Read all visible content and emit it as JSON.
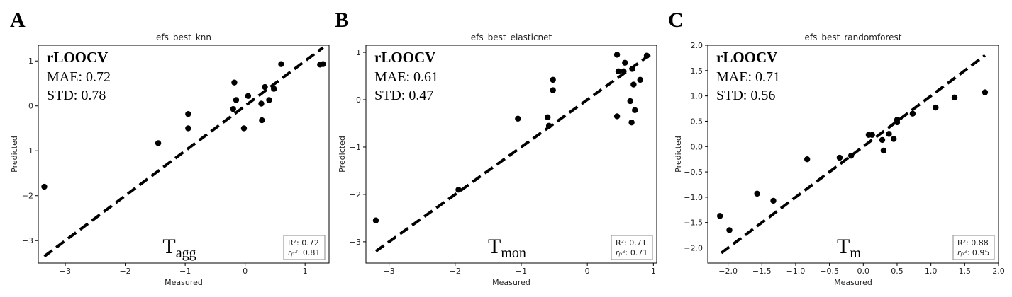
{
  "chart_data": [
    {
      "type": "scatter",
      "panel_label": "A",
      "title": "efs_best_knn",
      "xlabel": "Measured",
      "ylabel": "Predicted",
      "xlim": [
        -3.45,
        1.4
      ],
      "ylim": [
        -3.5,
        1.35
      ],
      "xticks": [
        -3,
        -2,
        -1,
        0,
        1
      ],
      "yticks": [
        -3,
        -2,
        -1,
        0,
        1
      ],
      "x": [
        -3.35,
        -1.45,
        -0.95,
        -0.95,
        -0.2,
        -0.18,
        -0.15,
        0.05,
        -0.02,
        0.27,
        0.28,
        0.33,
        0.4,
        0.48,
        0.6,
        1.25,
        1.3
      ],
      "y": [
        -1.8,
        -0.83,
        -0.18,
        -0.5,
        -0.07,
        0.52,
        0.13,
        0.22,
        -0.5,
        0.05,
        -0.32,
        0.42,
        0.13,
        0.38,
        0.93,
        0.92,
        0.93
      ],
      "fit_line": {
        "x": [
          -3.35,
          1.3
        ],
        "y": [
          -3.35,
          1.3
        ]
      },
      "method": "rLOOCV",
      "mae_text": "MAE: 0.72",
      "std_text": "STD: 0.78",
      "property_main": "T",
      "property_sub": "agg",
      "r2_text": "R²: 0.72",
      "rp2_label": "rₚ²",
      "rp2_value": ": 0.81"
    },
    {
      "type": "scatter",
      "panel_label": "B",
      "title": "efs_best_elasticnet",
      "xlabel": "Measured",
      "ylabel": "Predicted",
      "xlim": [
        -3.35,
        1.05
      ],
      "ylim": [
        -3.45,
        1.15
      ],
      "xticks": [
        -3,
        -2,
        -1,
        0,
        1
      ],
      "yticks": [
        -3,
        -2,
        -1,
        0,
        1
      ],
      "x": [
        -3.2,
        -1.95,
        -1.05,
        -0.6,
        -0.58,
        -0.52,
        -0.52,
        0.45,
        0.47,
        0.45,
        0.55,
        0.57,
        0.65,
        0.67,
        0.68,
        0.7,
        0.72,
        0.8,
        0.9
      ],
      "y": [
        -2.55,
        -1.9,
        -0.4,
        -0.37,
        -0.55,
        0.42,
        0.2,
        0.95,
        0.6,
        -0.35,
        0.6,
        0.78,
        -0.03,
        -0.48,
        0.65,
        0.32,
        -0.22,
        0.42,
        0.93
      ],
      "fit_line": {
        "x": [
          -3.2,
          0.95
        ],
        "y": [
          -3.2,
          0.95
        ]
      },
      "method": "rLOOCV",
      "mae_text": "MAE: 0.61",
      "std_text": "STD: 0.47",
      "property_main": "T",
      "property_sub": "mon",
      "r2_text": "R²: 0.71",
      "rp2_label": "rₚ²",
      "rp2_value": ": 0.71"
    },
    {
      "type": "scatter",
      "panel_label": "C",
      "title": "efs_best_randomforest",
      "xlabel": "Measured",
      "ylabel": "Predicted",
      "xlim": [
        -2.3,
        2.0
      ],
      "ylim": [
        -2.3,
        2.0
      ],
      "xticks": [
        -2.0,
        -1.5,
        -1.0,
        -0.5,
        0.0,
        0.5,
        1.0,
        1.5,
        2.0
      ],
      "yticks": [
        -2.0,
        -1.5,
        -1.0,
        -0.5,
        0.0,
        0.5,
        1.0,
        1.5,
        2.0
      ],
      "x": [
        -2.12,
        -1.98,
        -1.57,
        -1.33,
        -0.83,
        -0.35,
        -0.18,
        0.08,
        0.13,
        0.28,
        0.3,
        0.38,
        0.45,
        0.5,
        0.5,
        0.73,
        1.07,
        1.35,
        1.8
      ],
      "y": [
        -1.37,
        -1.65,
        -0.93,
        -1.07,
        -0.25,
        -0.22,
        -0.18,
        0.23,
        0.23,
        0.13,
        -0.08,
        0.25,
        0.15,
        0.48,
        0.53,
        0.65,
        0.77,
        0.97,
        1.07
      ],
      "fit_line": {
        "x": [
          -2.1,
          1.8
        ],
        "y": [
          -2.1,
          1.8
        ]
      },
      "method": "rLOOCV",
      "mae_text": "MAE: 0.71",
      "std_text": "STD: 0.56",
      "property_main": "T",
      "property_sub": "m",
      "r2_text": "R²: 0.88",
      "rp2_label": "rₚ²",
      "rp2_value": ": 0.95"
    }
  ]
}
